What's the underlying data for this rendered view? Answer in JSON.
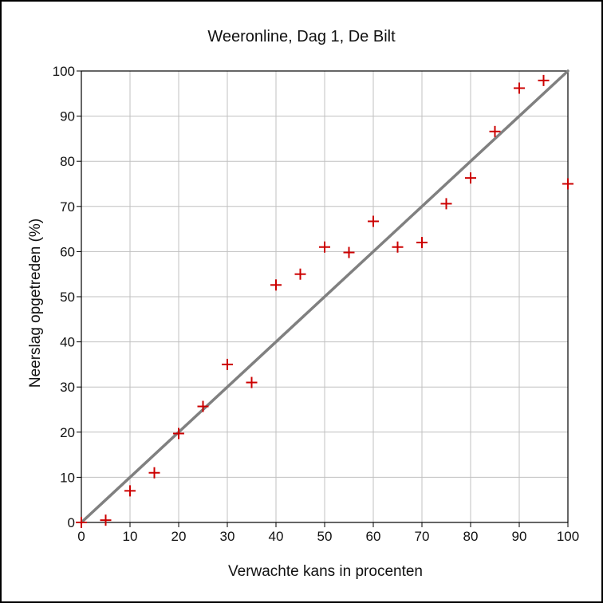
{
  "chart_data": {
    "type": "scatter",
    "title": "Weeronline, Dag 1, De Bilt",
    "xlabel": "Verwachte kans in procenten",
    "ylabel": "Neerslag opgetreden (%)",
    "xlim": [
      0,
      100
    ],
    "ylim": [
      0,
      100
    ],
    "xticks": [
      0,
      10,
      20,
      30,
      40,
      50,
      60,
      70,
      80,
      90,
      100
    ],
    "yticks": [
      0,
      10,
      20,
      30,
      40,
      50,
      60,
      70,
      80,
      90,
      100
    ],
    "grid": true,
    "legend": "none",
    "points": {
      "x": [
        0,
        5,
        10,
        15,
        20,
        25,
        30,
        35,
        40,
        45,
        50,
        55,
        60,
        65,
        70,
        75,
        80,
        85,
        90,
        95,
        100
      ],
      "y": [
        0,
        0.5,
        7,
        11,
        19.7,
        25.7,
        35,
        31,
        52.6,
        55,
        61,
        59.8,
        66.7,
        61,
        62,
        70.6,
        76.3,
        86.6,
        96.2,
        97.9,
        75
      ]
    },
    "reference_line": {
      "x": [
        0,
        100
      ],
      "y": [
        0,
        100
      ]
    },
    "colors": {
      "points": "#cc0000",
      "reference_line": "#808080",
      "grid": "#c0c0c0",
      "axes": "#000000"
    }
  }
}
